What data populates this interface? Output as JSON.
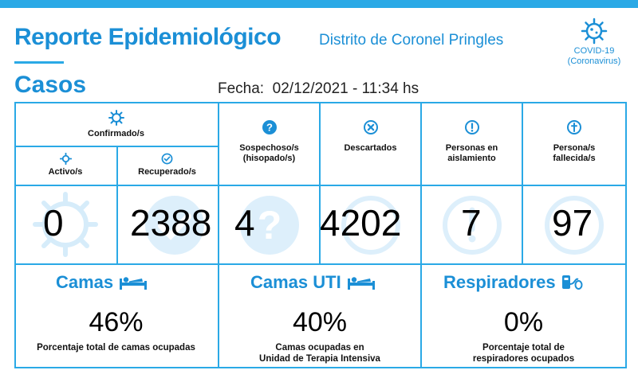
{
  "header": {
    "title": "Reporte Epidemiológico",
    "subtitle": "Distrito de Coronel Pringles",
    "section": "Casos",
    "fecha_label": "Fecha:",
    "fecha_value": "02/12/2021 - 11:34 hs",
    "covid_line1": "COVID-19",
    "covid_line2": "(Coronavirus)"
  },
  "casos": {
    "confirmados_label": "Confirmado/s",
    "activos_label": "Activo/s",
    "recuperados_label": "Recuperado/s",
    "sospechosos_label": "Sospechoso/s (hisopado/s)",
    "descartados_label": "Descartados",
    "aislamiento_label": "Personas en aislamiento",
    "fallecidos_label": "Persona/s fallecida/s",
    "activos_value": "0",
    "recuperados_value": "2388",
    "sospechosos_value": "4",
    "descartados_value": "4202",
    "aislamiento_value": "7",
    "fallecidos_value": "97"
  },
  "ocupacion": {
    "camas_title": "Camas",
    "camas_pct": "46%",
    "camas_desc": "Porcentaje total de camas ocupadas",
    "uti_title": "Camas UTI",
    "uti_pct": "40%",
    "uti_desc_1": "Camas ocupadas en",
    "uti_desc_2": "Unidad de Terapia Intensiva",
    "resp_title": "Respiradores",
    "resp_pct": "0%",
    "resp_desc_1": "Porcentaje total de",
    "resp_desc_2": "respiradores ocupados"
  },
  "colors": {
    "accent": "#1b8fd6",
    "line": "#2aa9e6",
    "watermark": "#d6ecfa"
  }
}
